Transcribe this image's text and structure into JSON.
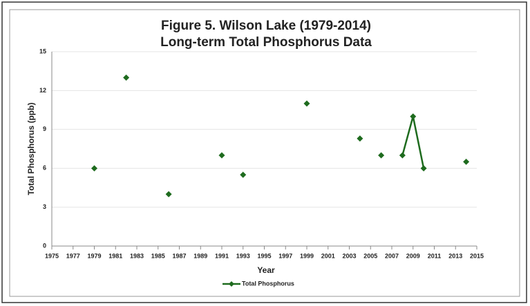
{
  "chart_data": {
    "type": "line",
    "title": "Figure 5. Wilson Lake (1979-2014)",
    "subtitle": "Long-term Total Phosphorus Data",
    "x_label": "Year",
    "y_label": "Total Phosphorus (ppb)",
    "x": [
      1979,
      1980,
      1981,
      1982,
      1983,
      1984,
      1985,
      1986,
      1987,
      1988,
      1989,
      1990,
      1991,
      1992,
      1993,
      1994,
      1995,
      1996,
      1997,
      1998,
      1999,
      2000,
      2001,
      2002,
      2003,
      2004,
      2005,
      2006,
      2007,
      2008,
      2009,
      2010,
      2011,
      2012,
      2013,
      2014
    ],
    "series": [
      {
        "name": "Total Phosphorus",
        "color": "#1e6b1e",
        "values": [
          6,
          null,
          null,
          13,
          null,
          null,
          null,
          4,
          null,
          null,
          null,
          null,
          7,
          null,
          5.5,
          null,
          null,
          null,
          null,
          null,
          11,
          null,
          null,
          null,
          null,
          8.3,
          null,
          7,
          null,
          7,
          10,
          6,
          null,
          null,
          null,
          6.5
        ]
      }
    ],
    "xlim": [
      1975,
      2015
    ],
    "xticks": [
      1975,
      1977,
      1979,
      1981,
      1983,
      1985,
      1987,
      1989,
      1991,
      1993,
      1995,
      1997,
      1999,
      2001,
      2003,
      2005,
      2007,
      2009,
      2011,
      2013,
      2015
    ],
    "ylim": [
      0,
      15
    ],
    "yticks": [
      0,
      3,
      6,
      9,
      12,
      15
    ],
    "grid": true,
    "legend": "bottom"
  }
}
